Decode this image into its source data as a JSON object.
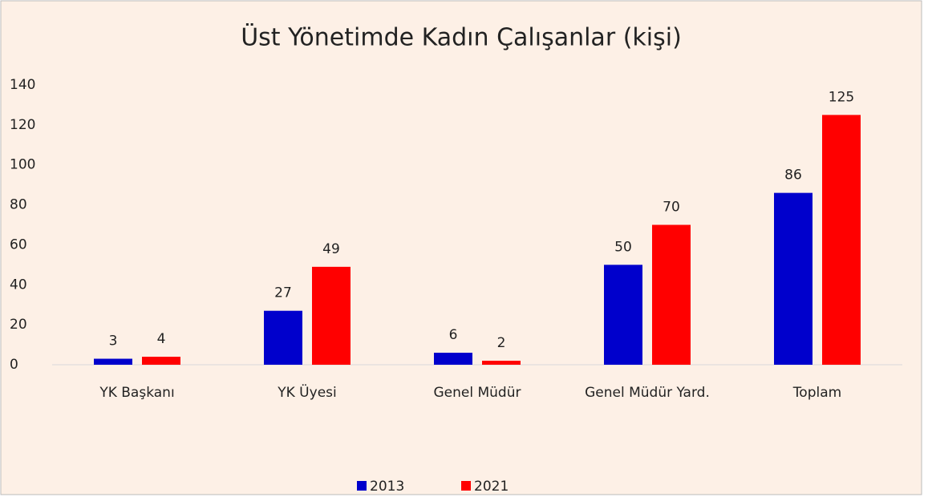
{
  "chart_data": {
    "type": "bar",
    "title": "Üst Yönetimde Kadın Çalışanlar (kişi)",
    "categories": [
      "YK Başkanı",
      "YK Üyesi",
      "Genel Müdür",
      "Genel Müdür Yard.",
      "Toplam"
    ],
    "series": [
      {
        "name": "2013",
        "color": "#0000cc",
        "values": [
          3,
          27,
          6,
          50,
          86
        ]
      },
      {
        "name": "2021",
        "color": "#ff0000",
        "values": [
          4,
          49,
          2,
          70,
          125
        ]
      }
    ],
    "ylim": [
      0,
      140
    ],
    "yticks": [
      0,
      20,
      40,
      60,
      80,
      100,
      120,
      140
    ],
    "grid": false,
    "legend": "bottom"
  }
}
